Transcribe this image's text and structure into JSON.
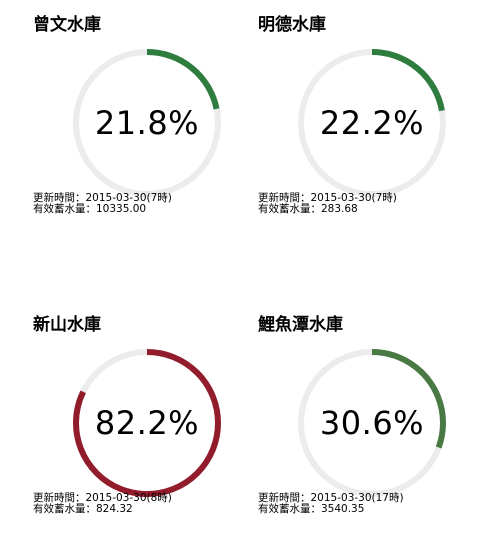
{
  "labels": {
    "updated_prefix": "更新時間：",
    "storage_prefix": "有效蓄水量："
  },
  "reservoirs": [
    {
      "name": "曾文水庫",
      "percent": 21.8,
      "percent_label": "21.8%",
      "updated": "2015-03-30(7時)",
      "storage": "10335.00",
      "color": "#2e7d3f"
    },
    {
      "name": "明德水庫",
      "percent": 22.2,
      "percent_label": "22.2%",
      "updated": "2015-03-30(7時)",
      "storage": "283.68",
      "color": "#2e7d3f"
    },
    {
      "name": "新山水庫",
      "percent": 82.2,
      "percent_label": "82.2%",
      "updated": "2015-03-30(8時)",
      "storage": "824.32",
      "color": "#921c2c"
    },
    {
      "name": "鯉魚潭水庫",
      "percent": 30.6,
      "percent_label": "30.6%",
      "updated": "2015-03-30(17時)",
      "storage": "3540.35",
      "color": "#4a7a44"
    }
  ],
  "track_color": "#ececec"
}
